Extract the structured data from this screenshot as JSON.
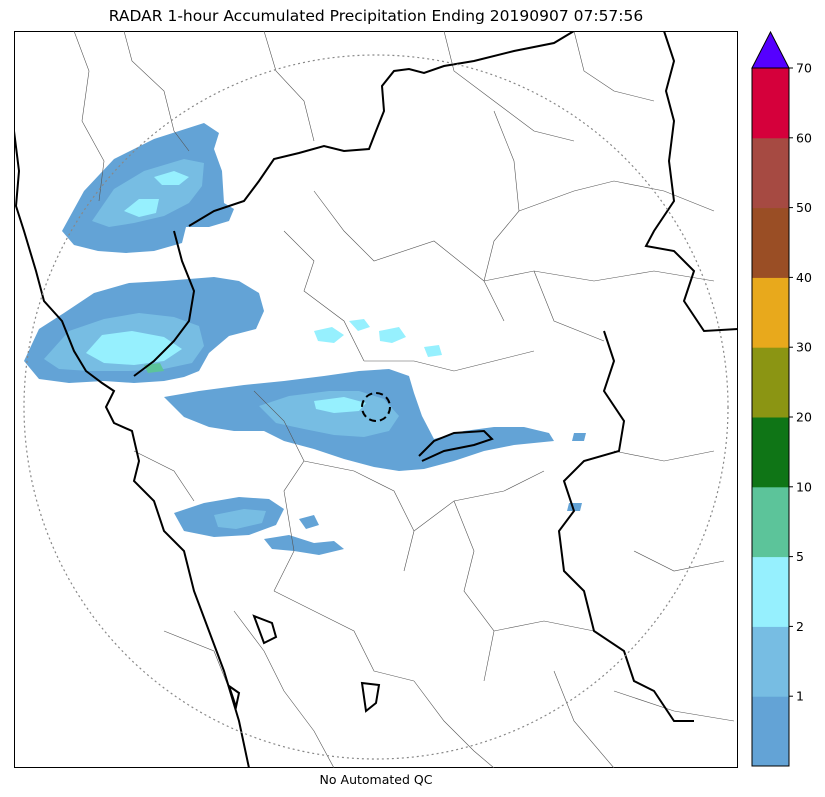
{
  "title": "RADAR 1-hour Accumulated Precipitation Ending 20190907 07:57:56",
  "footer": "No Automated QC",
  "colorbar": {
    "levels": [
      {
        "label": "",
        "color": "#63a3d6"
      },
      {
        "label": "1",
        "color": "#77bde3"
      },
      {
        "label": "2",
        "color": "#96f0fe"
      },
      {
        "label": "5",
        "color": "#5cc49a"
      },
      {
        "label": "10",
        "color": "#0f7516"
      },
      {
        "label": "20",
        "color": "#8b9513"
      },
      {
        "label": "30",
        "color": "#e8a91c"
      },
      {
        "label": "40",
        "color": "#9a4e25"
      },
      {
        "label": "50",
        "color": "#a64a42"
      },
      {
        "label": "60",
        "color": "#d5003b"
      },
      {
        "label": "70",
        "color": "#5500ff"
      }
    ],
    "extend": "max"
  },
  "colors": {
    "light_rain": "#63a3d6",
    "medium_rain": "#77bde3",
    "heavy_rain": "#96f0fe",
    "coast_border": "#000000",
    "district_lines": "#555555",
    "range_ring": "#888888"
  }
}
